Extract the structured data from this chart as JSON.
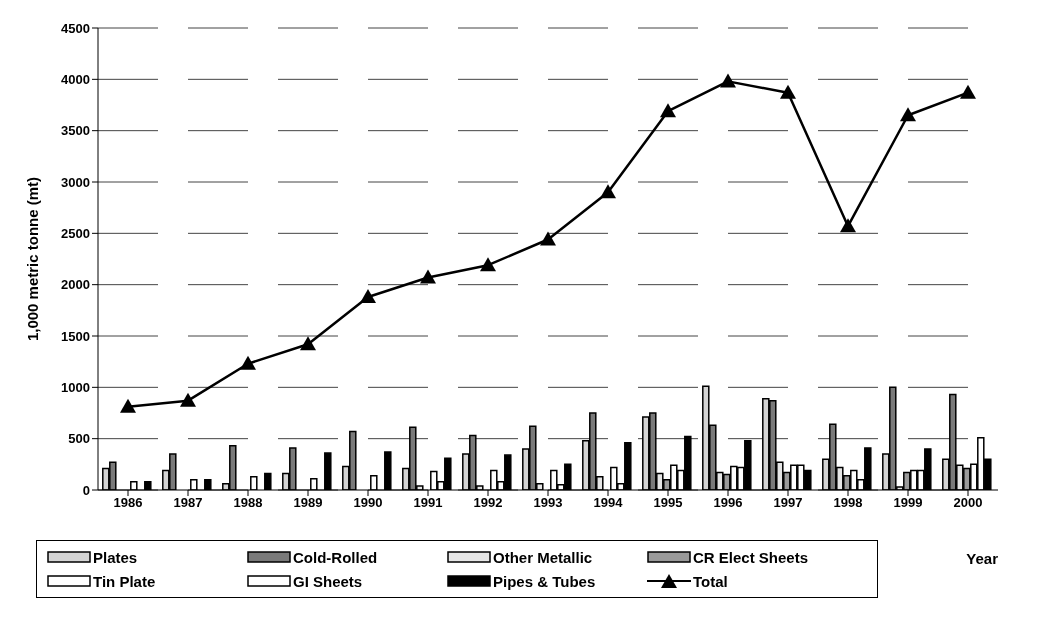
{
  "chart_data": {
    "type": "bar",
    "xlabel": "Year",
    "ylabel": "1,000 metric tonne (mt)",
    "categories": [
      "1986",
      "1987",
      "1988",
      "1989",
      "1990",
      "1991",
      "1992",
      "1993",
      "1994",
      "1995",
      "1996",
      "1997",
      "1998",
      "1999",
      "2000"
    ],
    "ylim": [
      0,
      4500
    ],
    "yticks": [
      0,
      500,
      1000,
      1500,
      2000,
      2500,
      3000,
      3500,
      4000,
      4500
    ],
    "grid": "y",
    "legend": "bottom",
    "marker": "triangle",
    "line_style": "solid",
    "series": [
      {
        "name": "Plates",
        "color": "#d4d4d4",
        "values": [
          210,
          190,
          60,
          160,
          230,
          210,
          350,
          400,
          480,
          710,
          1010,
          890,
          300,
          350,
          300
        ]
      },
      {
        "name": "Cold-Rolled",
        "color": "#7a7a7a",
        "values": [
          270,
          350,
          430,
          410,
          570,
          610,
          530,
          620,
          750,
          750,
          630,
          870,
          640,
          1000,
          930
        ]
      },
      {
        "name": "Other Metallic",
        "color": "#e6e6e6",
        "values": [
          0,
          0,
          0,
          0,
          0,
          40,
          40,
          60,
          130,
          160,
          170,
          270,
          220,
          30,
          240
        ]
      },
      {
        "name": "CR Elect Sheets",
        "color": "#9a9a9a",
        "values": [
          0,
          0,
          0,
          0,
          0,
          0,
          0,
          0,
          0,
          100,
          150,
          170,
          140,
          170,
          210
        ]
      },
      {
        "name": "Tin Plate",
        "color": "#ffffff",
        "values": [
          80,
          100,
          130,
          110,
          140,
          180,
          190,
          190,
          220,
          240,
          230,
          240,
          190,
          190,
          250
        ]
      },
      {
        "name": "GI Sheets",
        "color": "#ffffff",
        "values": [
          0,
          0,
          0,
          0,
          0,
          80,
          80,
          50,
          60,
          190,
          220,
          240,
          100,
          190,
          510
        ]
      },
      {
        "name": "Pipes & Tubes",
        "color": "#000000",
        "values": [
          80,
          100,
          160,
          360,
          370,
          310,
          340,
          250,
          460,
          520,
          480,
          190,
          410,
          400,
          300
        ]
      },
      {
        "name": "Total",
        "type": "line",
        "color": "#000000",
        "values": [
          810,
          870,
          1230,
          1420,
          1880,
          2070,
          2190,
          2440,
          2900,
          3690,
          3980,
          3870,
          2570,
          3650,
          3870
        ]
      }
    ]
  }
}
